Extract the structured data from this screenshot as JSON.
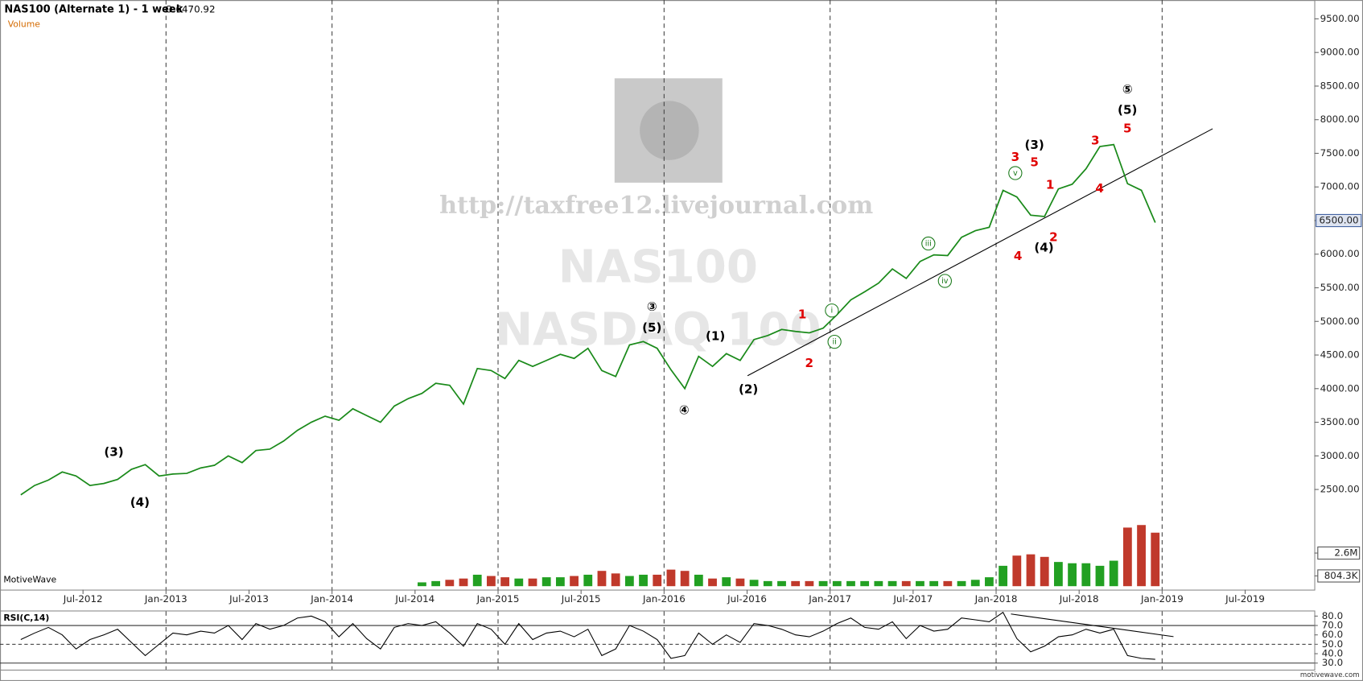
{
  "chart_data": [
    {
      "type": "line",
      "title": "NAS100 (Alternate 1) - 1 week",
      "subtitle": "O:6470.92",
      "color": "#1a8a1a",
      "x": [
        "Feb-2012",
        "Mar-2012",
        "Apr-2012",
        "May-2012",
        "Jun-2012",
        "Jul-2012",
        "Aug-2012",
        "Sep-2012",
        "Oct-2012",
        "Nov-2012",
        "Dec-2012",
        "Jan-2013",
        "Feb-2013",
        "Mar-2013",
        "Apr-2013",
        "May-2013",
        "Jun-2013",
        "Jul-2013",
        "Aug-2013",
        "Sep-2013",
        "Oct-2013",
        "Nov-2013",
        "Dec-2013",
        "Jan-2014",
        "Feb-2014",
        "Mar-2014",
        "Apr-2014",
        "May-2014",
        "Jun-2014",
        "Jul-2014",
        "Aug-2014",
        "Sep-2014",
        "Oct-2014",
        "Nov-2014",
        "Dec-2014",
        "Jan-2015",
        "Feb-2015",
        "Mar-2015",
        "Apr-2015",
        "May-2015",
        "Jun-2015",
        "Jul-2015",
        "Aug-2015",
        "Sep-2015",
        "Oct-2015",
        "Nov-2015",
        "Dec-2015",
        "Jan-2016",
        "Feb-2016",
        "Mar-2016",
        "Apr-2016",
        "May-2016",
        "Jun-2016",
        "Jul-2016",
        "Aug-2016",
        "Sep-2016",
        "Oct-2016",
        "Nov-2016",
        "Dec-2016",
        "Jan-2017",
        "Feb-2017",
        "Mar-2017",
        "Apr-2017",
        "May-2017",
        "Jun-2017",
        "Jul-2017",
        "Aug-2017",
        "Sep-2017",
        "Oct-2017",
        "Nov-2017",
        "Dec-2017",
        "Jan-2018",
        "Feb-2018",
        "Mar-2018",
        "Apr-2018",
        "May-2018",
        "Jun-2018",
        "Jul-2018",
        "Aug-2018",
        "Sep-2018",
        "Oct-2018",
        "Nov-2018",
        "Dec-2018"
      ],
      "values": [
        2420,
        2560,
        2640,
        2760,
        2700,
        2560,
        2590,
        2650,
        2800,
        2870,
        2700,
        2730,
        2740,
        2820,
        2860,
        3000,
        2900,
        3080,
        3100,
        3220,
        3380,
        3500,
        3590,
        3530,
        3700,
        3600,
        3500,
        3740,
        3850,
        3930,
        4080,
        4050,
        3770,
        4300,
        4270,
        4150,
        4420,
        4330,
        4420,
        4510,
        4450,
        4600,
        4270,
        4180,
        4650,
        4700,
        4600,
        4280,
        4000,
        4480,
        4330,
        4520,
        4420,
        4730,
        4790,
        4880,
        4850,
        4830,
        4900,
        5100,
        5320,
        5440,
        5570,
        5780,
        5640,
        5890,
        5990,
        5980,
        6250,
        6350,
        6400,
        6950,
        6850,
        6580,
        6560,
        6970,
        7040,
        7270,
        7600,
        7630,
        7050,
        6950,
        6470
      ],
      "xlim": [
        "Jan-2012",
        "Dec-2019"
      ],
      "xticks": [
        "Jul-2012",
        "Jan-2013",
        "Jul-2013",
        "Jan-2014",
        "Jul-2014",
        "Jan-2015",
        "Jul-2015",
        "Jan-2016",
        "Jul-2016",
        "Jan-2017",
        "Jul-2017",
        "Jan-2018",
        "Jul-2018",
        "Jan-2019",
        "Jul-2019"
      ],
      "ylim": [
        1010,
        9780
      ],
      "yticks": [
        {
          "value": 2500,
          "label": "2500.00"
        },
        {
          "value": 3000,
          "label": "3000.00"
        },
        {
          "value": 3500,
          "label": "3500.00"
        },
        {
          "value": 4000,
          "label": "4000.00"
        },
        {
          "value": 4500,
          "label": "4500.00"
        },
        {
          "value": 5000,
          "label": "5000.00"
        },
        {
          "value": 5500,
          "label": "5500.00"
        },
        {
          "value": 6000,
          "label": "6000.00"
        },
        {
          "value": 6500,
          "label": "6500.00"
        },
        {
          "value": 7000,
          "label": "7000.00"
        },
        {
          "value": 7500,
          "label": "7500.00"
        },
        {
          "value": 8000,
          "label": "8000.00"
        },
        {
          "value": 8500,
          "label": "8500.00"
        },
        {
          "value": 9000,
          "label": "9000.00"
        },
        {
          "value": 9500,
          "label": "9500.00"
        }
      ],
      "last_price": {
        "value": 6500,
        "label": "6500.00"
      },
      "annotations": [
        "(3)",
        "(4)",
        "③",
        "(5)",
        "④",
        "(1)",
        "(2)",
        "(3)",
        "(4)",
        "⑤",
        "(5)",
        "1",
        "2",
        "3",
        "5",
        "1",
        "4",
        "2",
        "3",
        "5",
        "4",
        "v",
        "iii",
        "iv",
        "i",
        "ii"
      ],
      "watermarks": [
        "http://taxfree12.livejournal.com",
        "NAS100",
        "NASDAQ 100"
      ],
      "source": "MotiveWave",
      "footer": "motivewave.com"
    },
    {
      "type": "bar",
      "title": "Volume",
      "color": "#c0392b",
      "values": [
        null,
        null,
        null,
        null,
        null,
        null,
        null,
        null,
        null,
        null,
        null,
        null,
        null,
        null,
        null,
        null,
        null,
        null,
        null,
        null,
        null,
        null,
        null,
        null,
        null,
        null,
        null,
        null,
        null,
        0.3,
        0.4,
        0.5,
        0.6,
        0.9,
        0.8,
        0.7,
        0.6,
        0.6,
        0.7,
        0.7,
        0.8,
        0.9,
        1.2,
        1.0,
        0.8,
        0.9,
        0.9,
        1.3,
        1.2,
        0.9,
        0.6,
        0.7,
        0.6,
        0.5,
        0.4,
        0.4,
        0.4,
        0.4,
        0.4,
        0.4,
        0.4,
        0.4,
        0.4,
        0.4,
        0.4,
        0.4,
        0.4,
        0.4,
        0.4,
        0.5,
        0.7,
        1.6,
        2.4,
        2.5,
        2.3,
        1.9,
        1.8,
        1.8,
        1.6,
        2.0,
        4.6,
        4.8,
        4.2
      ],
      "ylim": [
        0,
        7.1
      ],
      "yticks": [
        {
          "value": 0.8043,
          "label": "804.3K"
        },
        {
          "value": 2.6,
          "label": "2.6M"
        }
      ]
    },
    {
      "type": "line",
      "title": "RSI(C,14)",
      "color": "#000000",
      "values": [
        55,
        62,
        68,
        60,
        45,
        55,
        60,
        66,
        52,
        38,
        50,
        62,
        60,
        64,
        62,
        70,
        55,
        72,
        66,
        70,
        78,
        80,
        74,
        58,
        72,
        56,
        45,
        68,
        72,
        70,
        74,
        62,
        48,
        72,
        66,
        50,
        72,
        55,
        62,
        64,
        58,
        66,
        38,
        45,
        70,
        64,
        55,
        35,
        38,
        62,
        50,
        60,
        52,
        72,
        70,
        66,
        60,
        58,
        64,
        72,
        78,
        68,
        66,
        74,
        56,
        70,
        64,
        66,
        78,
        76,
        74,
        84,
        56,
        42,
        48,
        58,
        60,
        66,
        62,
        66,
        38,
        35,
        34
      ],
      "ylim": [
        23,
        85
      ],
      "yticks": [
        {
          "value": 30,
          "label": "30.0"
        },
        {
          "value": 40,
          "label": "40.0"
        },
        {
          "value": 50,
          "label": "50.0"
        },
        {
          "value": 60,
          "label": "60.0"
        },
        {
          "value": 70,
          "label": "70.0"
        },
        {
          "value": 80,
          "label": "80.0"
        }
      ]
    }
  ]
}
